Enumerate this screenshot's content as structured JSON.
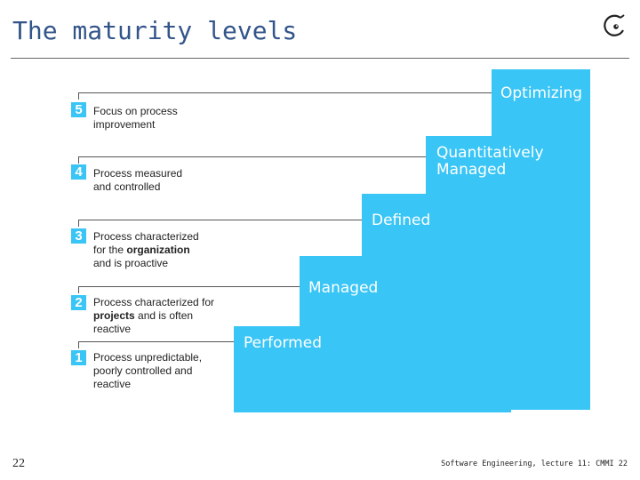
{
  "slide": {
    "title": "The maturity levels",
    "page_number": "22",
    "footer": "Software Engineering, lecture 11: CMMI 22"
  },
  "steps": [
    {
      "level": "5",
      "name": "Optimizing",
      "desc_lines": [
        [
          "Focus on process"
        ],
        [
          "improvement"
        ]
      ]
    },
    {
      "level": "4",
      "name_lines": [
        "Quantitatively",
        "Managed"
      ],
      "desc_lines": [
        [
          "Process measured"
        ],
        [
          "and controlled"
        ]
      ]
    },
    {
      "level": "3",
      "name": "Defined",
      "desc_prefix_l1": "Process characterized",
      "desc_l2_prefix": "for the ",
      "desc_l2_bold": "organization",
      "desc_l3": "and is proactive"
    },
    {
      "level": "2",
      "name": "Managed",
      "desc_l1": "Process characterized for",
      "desc_l2_bold": "projects",
      "desc_l2_suffix": " and is often",
      "desc_l3": "reactive"
    },
    {
      "level": "1",
      "name": "Performed",
      "desc_l1": "Process unpredictable,",
      "desc_l2": "poorly controlled and",
      "desc_l3": "reactive"
    }
  ],
  "colors": {
    "stair": "#39c5f5",
    "title": "#33558a",
    "logo": "#222222"
  },
  "icons": {
    "logo": "eiffel-logo-icon"
  }
}
